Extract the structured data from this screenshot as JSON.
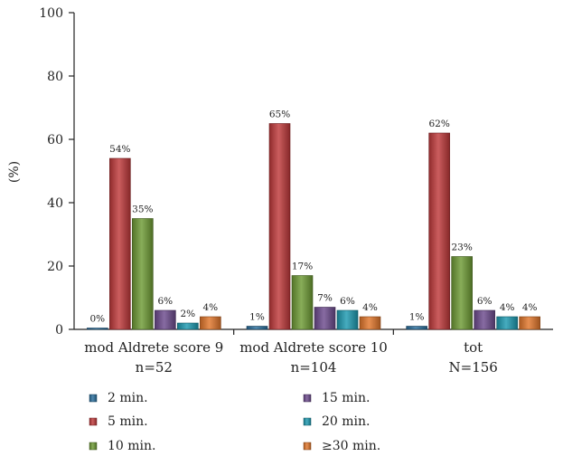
{
  "chart_data": {
    "type": "bar",
    "title": "",
    "xlabel": "",
    "ylabel": "(%)",
    "ylim": [
      0,
      100
    ],
    "yticks": [
      0,
      20,
      40,
      60,
      80,
      100
    ],
    "grid": false,
    "legend_position": "bottom",
    "categories": [
      {
        "line1": "mod Aldrete score 9",
        "line2": "n=52"
      },
      {
        "line1": "mod Aldrete score 10",
        "line2": "n=104"
      },
      {
        "line1": "tot",
        "line2": "N=156"
      }
    ],
    "series": [
      {
        "name": "2 min.",
        "color": "#2a6f9e",
        "values": [
          0,
          1,
          1
        ],
        "labels": [
          "0%",
          "1%",
          "1%"
        ]
      },
      {
        "name": "5 min.",
        "color": "#c0393b",
        "values": [
          54,
          65,
          62
        ],
        "labels": [
          "54%",
          "65%",
          "62%"
        ]
      },
      {
        "name": "10 min.",
        "color": "#6e9b35",
        "values": [
          35,
          17,
          23
        ],
        "labels": [
          "35%",
          "17%",
          "23%"
        ]
      },
      {
        "name": "15 min.",
        "color": "#6d4b8e",
        "values": [
          6,
          7,
          6
        ],
        "labels": [
          "6%",
          "7%",
          "6%"
        ]
      },
      {
        "name": "20 min.",
        "color": "#1d9ab1",
        "values": [
          2,
          6,
          4
        ],
        "labels": [
          "2%",
          "6%",
          "4%"
        ]
      },
      {
        "name": "≥30 min.",
        "color": "#e2762b",
        "values": [
          4,
          4,
          4
        ],
        "labels": [
          "4%",
          "4%",
          "4%"
        ]
      }
    ]
  }
}
